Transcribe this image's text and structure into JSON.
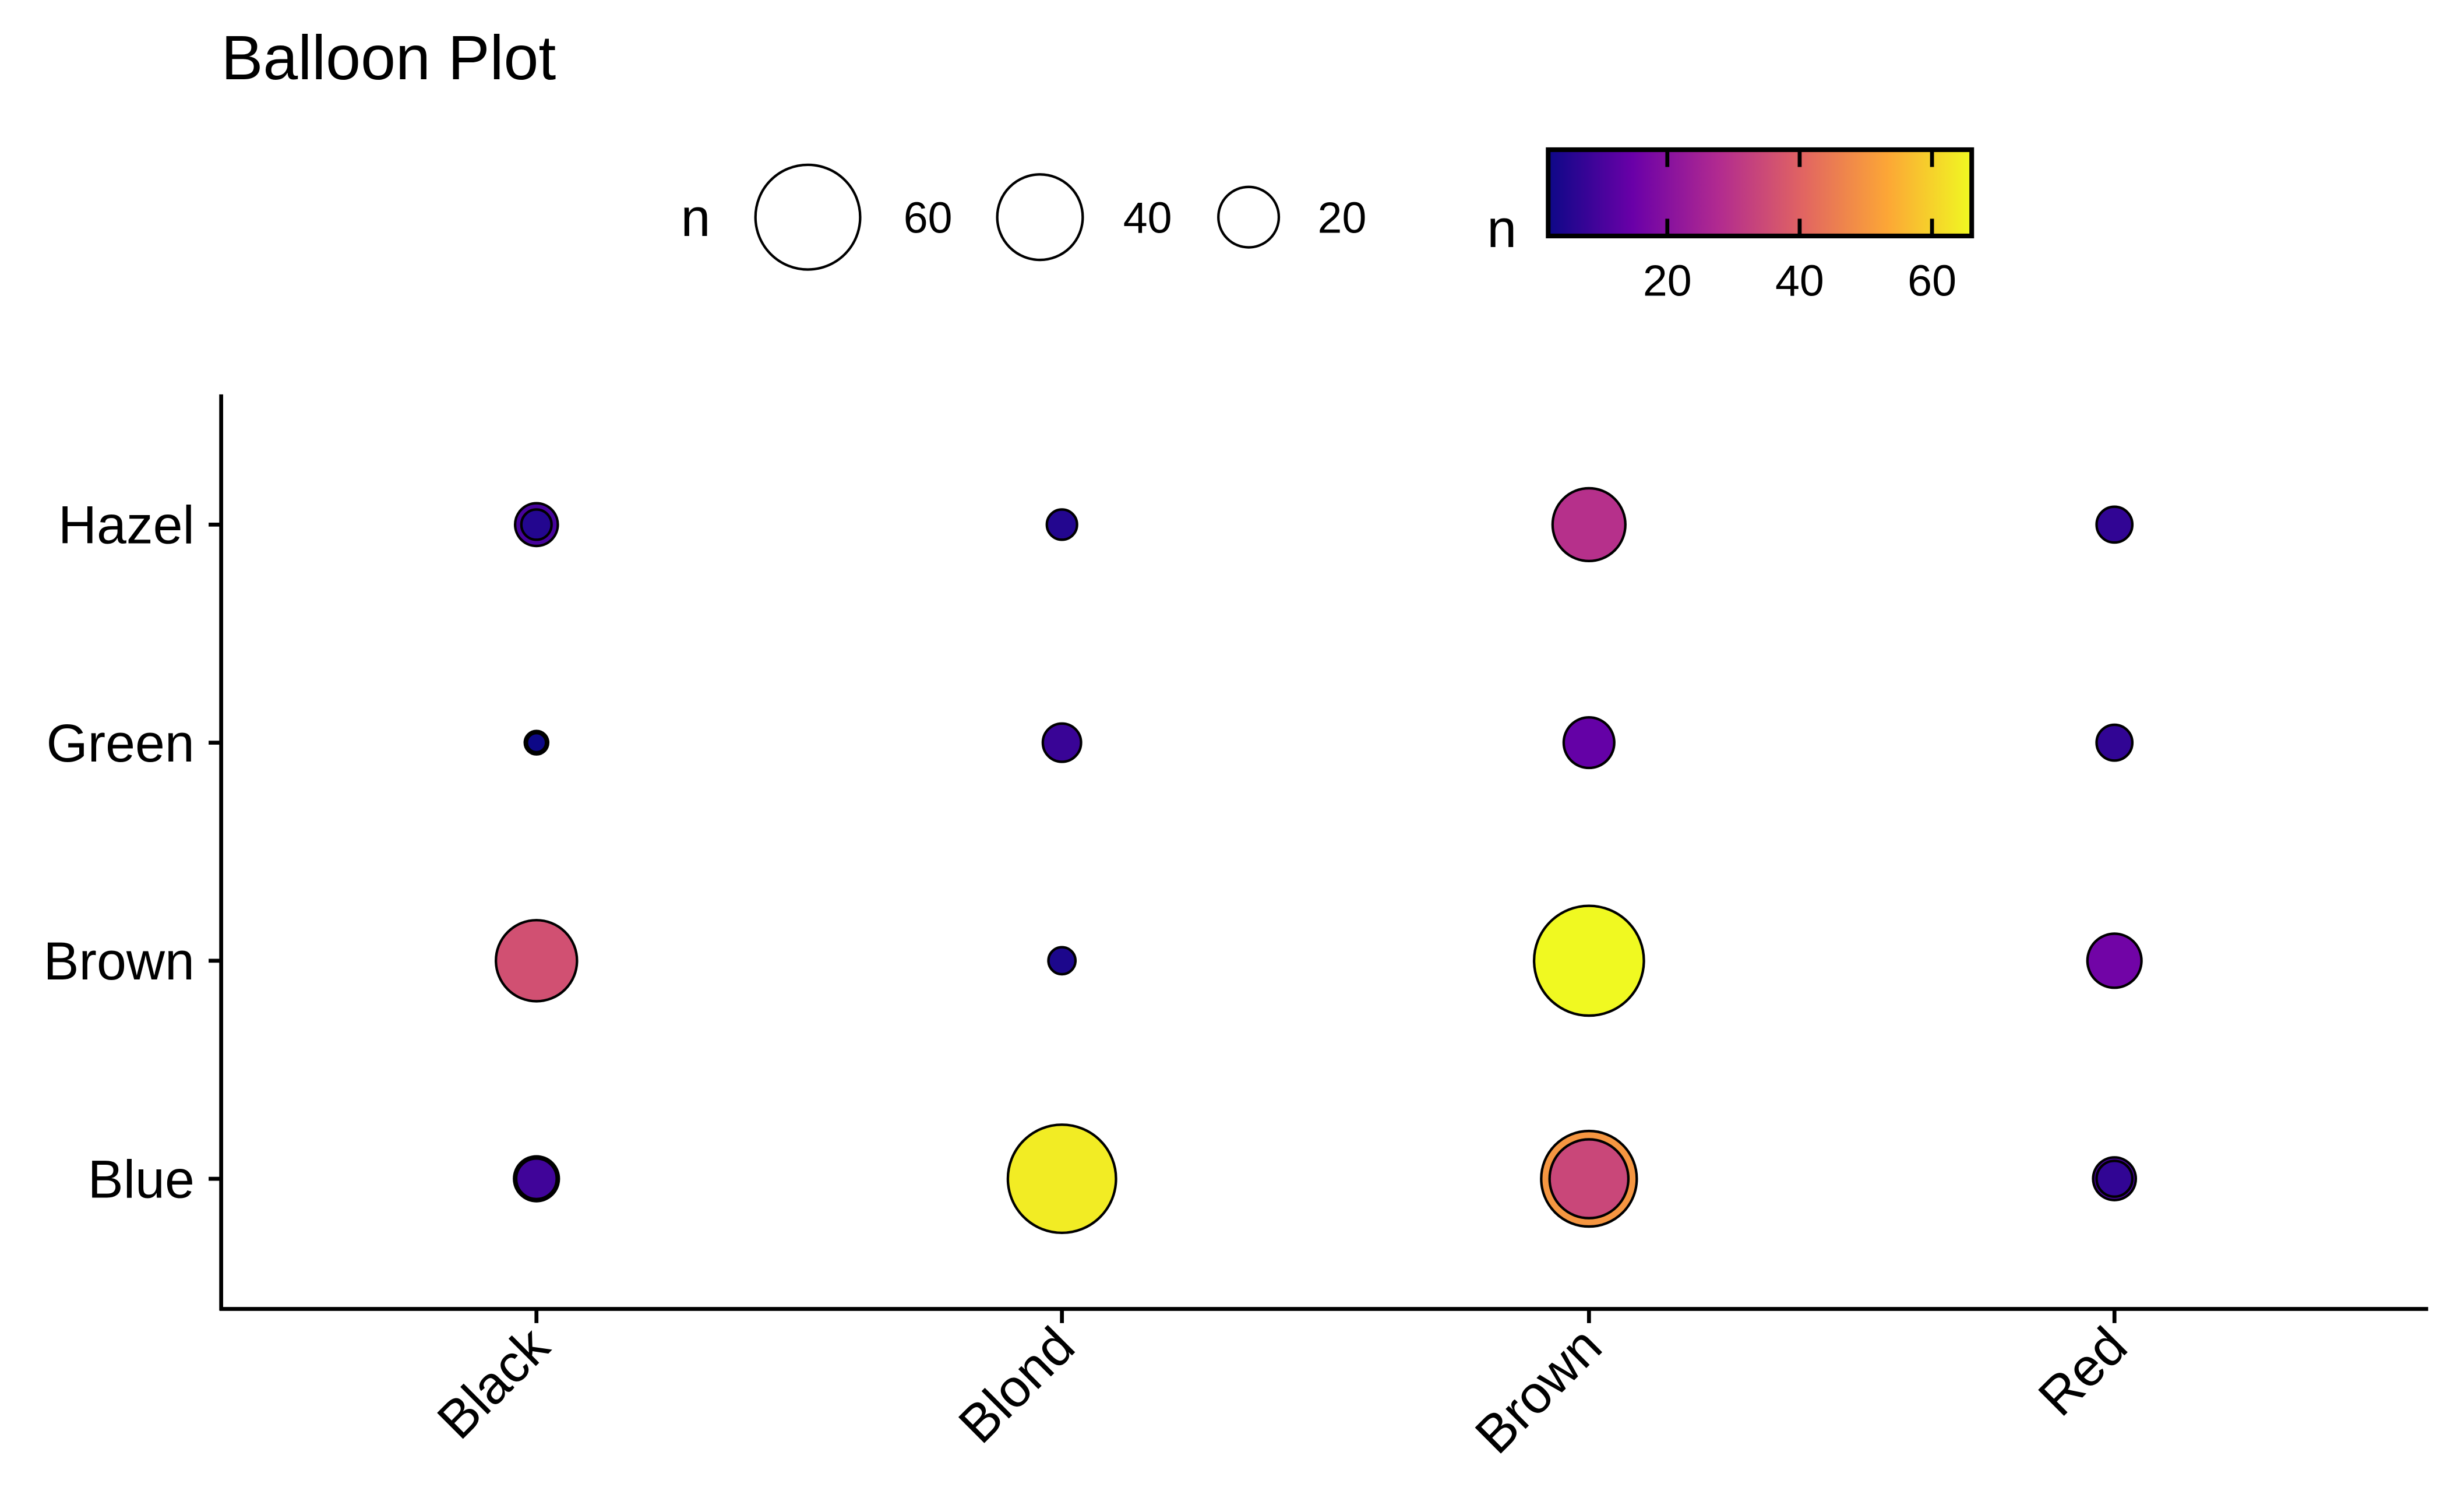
{
  "chart_data": {
    "type": "balloon",
    "title": "Balloon Plot",
    "xlabel": "",
    "ylabel": "",
    "x_categories": [
      "Black",
      "Blond",
      "Brown",
      "Red"
    ],
    "y_categories": [
      "Blue",
      "Brown",
      "Green",
      "Hazel"
    ],
    "points": [
      {
        "x": "Black",
        "y": "Blue",
        "n": 11
      },
      {
        "x": "Black",
        "y": "Blue",
        "n": 9
      },
      {
        "x": "Black",
        "y": "Brown",
        "n": 36
      },
      {
        "x": "Black",
        "y": "Green",
        "n": 3
      },
      {
        "x": "Black",
        "y": "Green",
        "n": 2
      },
      {
        "x": "Black",
        "y": "Hazel",
        "n": 10
      },
      {
        "x": "Black",
        "y": "Hazel",
        "n": 5
      },
      {
        "x": "Blond",
        "y": "Blue",
        "n": 64
      },
      {
        "x": "Blond",
        "y": "Brown",
        "n": 4
      },
      {
        "x": "Blond",
        "y": "Green",
        "n": 8
      },
      {
        "x": "Blond",
        "y": "Hazel",
        "n": 5
      },
      {
        "x": "Brown",
        "y": "Blue",
        "n": 50
      },
      {
        "x": "Brown",
        "y": "Blue",
        "n": 34
      },
      {
        "x": "Brown",
        "y": "Brown",
        "n": 66
      },
      {
        "x": "Brown",
        "y": "Green",
        "n": 14
      },
      {
        "x": "Brown",
        "y": "Hazel",
        "n": 29
      },
      {
        "x": "Red",
        "y": "Blue",
        "n": 10
      },
      {
        "x": "Red",
        "y": "Blue",
        "n": 7
      },
      {
        "x": "Red",
        "y": "Brown",
        "n": 16
      },
      {
        "x": "Red",
        "y": "Green",
        "n": 7
      },
      {
        "x": "Red",
        "y": "Hazel",
        "n": 7
      }
    ],
    "size_legend": {
      "title": "n",
      "breaks": [
        60,
        40,
        20
      ]
    },
    "color_legend": {
      "title": "n",
      "breaks": [
        20,
        40,
        60
      ],
      "range": [
        2,
        66
      ],
      "palette": "plasma",
      "colors": [
        "#0d0887",
        "#6a00a8",
        "#b12a90",
        "#e16462",
        "#fca636",
        "#f0f921"
      ]
    },
    "legend_position": "top",
    "grid": false
  }
}
